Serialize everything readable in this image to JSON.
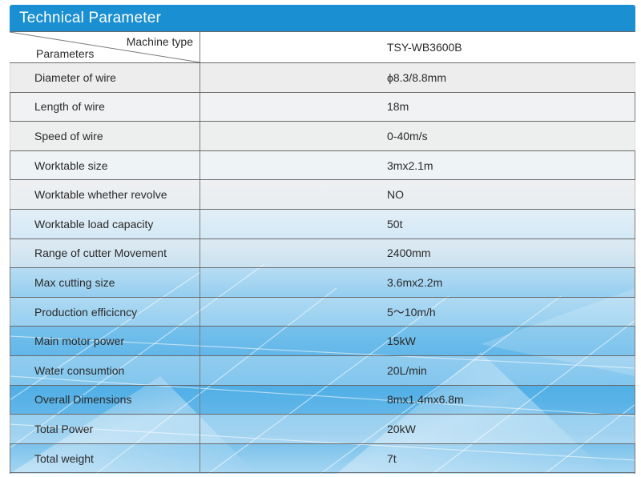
{
  "header": {
    "title": "Technical Parameter"
  },
  "table": {
    "corner_top": "Machine type",
    "corner_bottom": "Parameters",
    "machine_model": "TSY-WB3600B",
    "rows": [
      {
        "param": "Diameter of  wire",
        "value": "ϕ8.3/8.8mm"
      },
      {
        "param": "Length of wire",
        "value": "18m"
      },
      {
        "param": "Speed of wire",
        "value": "0-40m/s"
      },
      {
        "param": "Worktable size",
        "value": "3mx2.1m"
      },
      {
        "param": "Worktable whether revolve",
        "value": "NO"
      },
      {
        "param": "Worktable load capacity",
        "value": "50t"
      },
      {
        "param": "Range of cutter Movement",
        "value": "2400mm"
      },
      {
        "param": "Max cutting size",
        "value": "3.6mx2.2m"
      },
      {
        "param": "Production efficicncy",
        "value": "5～10m/h"
      },
      {
        "param": "Main motor power",
        "value": "15kW"
      },
      {
        "param": "Water consumtion",
        "value": "20L/min"
      },
      {
        "param": "Overall Dimensions",
        "value": "8mx1.4mx6.8m"
      },
      {
        "param": "Total Power",
        "value": "20kW"
      },
      {
        "param": "Total weight",
        "value": "7t"
      }
    ]
  },
  "colors": {
    "header_blue": "#1a8fd1",
    "row_light": "#ececec",
    "row_blue_light": "#d6ebf8",
    "row_blue_mid": "#8ecbee",
    "row_blue_dark": "#3ea4e0",
    "text": "#2a2a2a"
  }
}
